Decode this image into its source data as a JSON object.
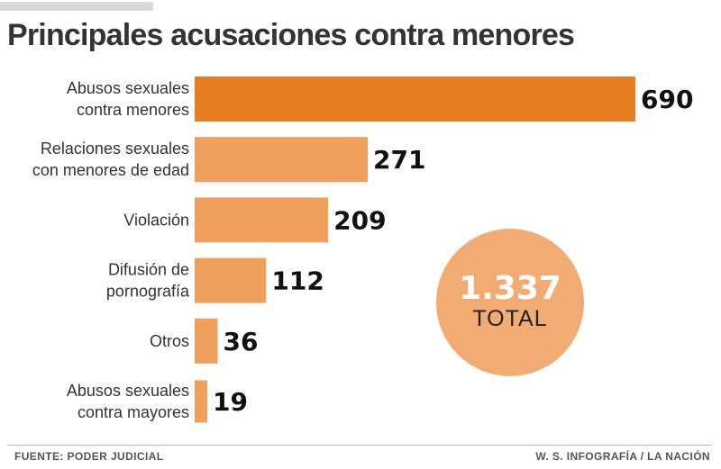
{
  "header": {
    "title": "Principales acusaciones contra menores"
  },
  "chart_data": {
    "type": "bar",
    "orientation": "horizontal",
    "title": "Principales acusaciones contra menores",
    "categories": [
      [
        "Abusos sexuales",
        "contra menores"
      ],
      [
        "Relaciones sexuales",
        "con menores de edad"
      ],
      [
        "Violación"
      ],
      [
        "Difusión de",
        "pornografía"
      ],
      [
        "Otros"
      ],
      [
        "Abusos sexuales",
        "contra mayores"
      ]
    ],
    "values": [
      690,
      271,
      209,
      112,
      36,
      19
    ],
    "value_labels": [
      "690",
      "271",
      "209",
      "112",
      "36",
      "19"
    ],
    "xlim": [
      0,
      690
    ],
    "grid": false,
    "colors": {
      "highlight": "#e87e22",
      "bar": "#f0a05c",
      "circle": "#f2ab72"
    },
    "total": {
      "value": "1.337",
      "label": "TOTAL"
    }
  },
  "footer": {
    "source": "FUENTE: PODER JUDICIAL",
    "credit": "W. S. INFOGRAFÍA / LA NACIÓN"
  }
}
